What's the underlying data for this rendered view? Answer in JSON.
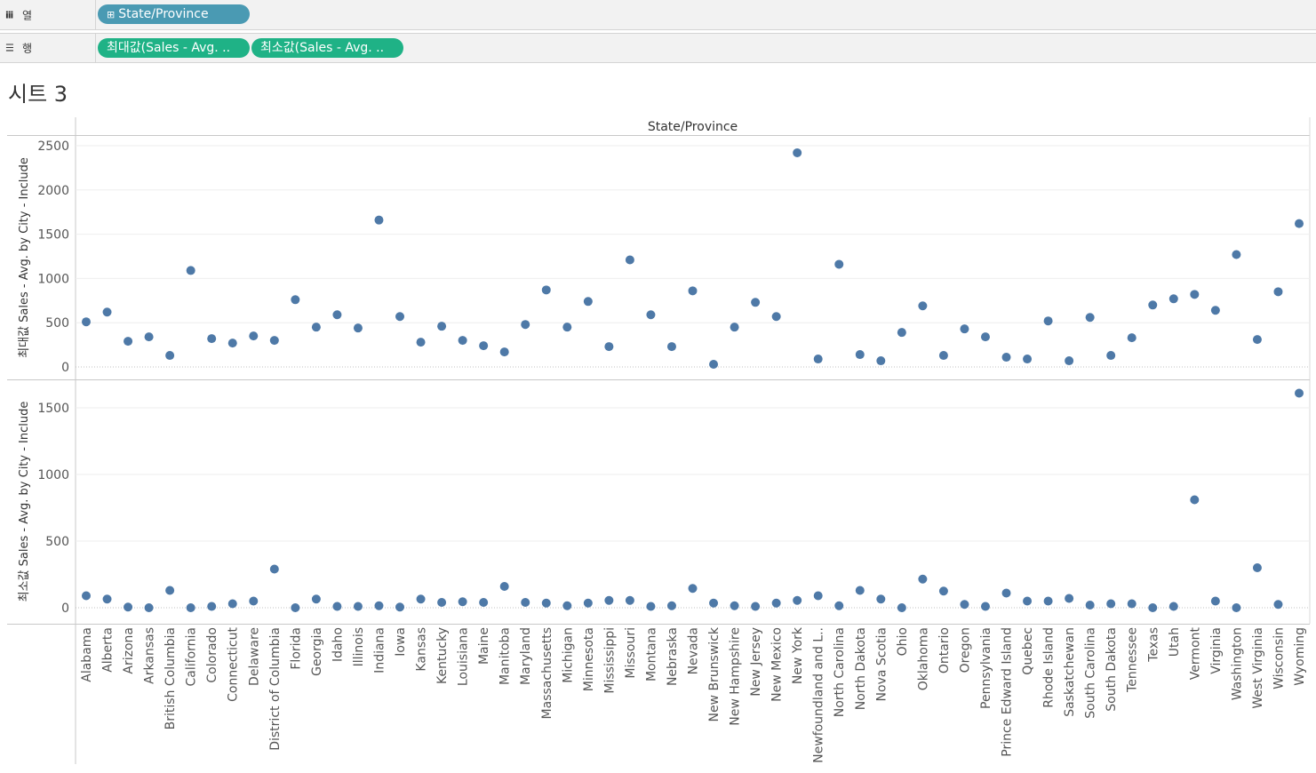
{
  "shelves": {
    "columns": {
      "icon": "iii",
      "label": "열",
      "pills": [
        "State/Province"
      ]
    },
    "rows": {
      "icon": "☰",
      "label": "행",
      "pills": [
        "최대값(Sales - Avg. ..",
        "최소값(Sales - Avg. .."
      ]
    }
  },
  "sheet_title": "시트 3",
  "colors": {
    "mark": "#4e79a7",
    "pill_dim": "#4a9ab3",
    "pill_measure": "#1fb286"
  },
  "chart_data": {
    "type": "scatter",
    "header": "State/Province",
    "categories": [
      "Alabama",
      "Alberta",
      "Arizona",
      "Arkansas",
      "British Columbia",
      "California",
      "Colorado",
      "Connecticut",
      "Delaware",
      "District of Columbia",
      "Florida",
      "Georgia",
      "Idaho",
      "Illinois",
      "Indiana",
      "Iowa",
      "Kansas",
      "Kentucky",
      "Louisiana",
      "Maine",
      "Manitoba",
      "Maryland",
      "Massachusetts",
      "Michigan",
      "Minnesota",
      "Mississippi",
      "Missouri",
      "Montana",
      "Nebraska",
      "Nevada",
      "New Brunswick",
      "New Hampshire",
      "New Jersey",
      "New Mexico",
      "New York",
      "Newfoundland and L..",
      "North Carolina",
      "North Dakota",
      "Nova Scotia",
      "Ohio",
      "Oklahoma",
      "Ontario",
      "Oregon",
      "Pennsylvania",
      "Prince Edward Island",
      "Quebec",
      "Rhode Island",
      "Saskatchewan",
      "South Carolina",
      "South Dakota",
      "Tennessee",
      "Texas",
      "Utah",
      "Vermont",
      "Virginia",
      "Washington",
      "West Virginia",
      "Wisconsin",
      "Wyoming"
    ],
    "panes": [
      {
        "name": "최대값 Sales - Avg. by City - Include",
        "ylabel": "최대값 Sales - Avg. by City - Include",
        "ylim": [
          0,
          2600
        ],
        "yticks": [
          0,
          500,
          1000,
          1500,
          2000,
          2500
        ],
        "values": [
          510,
          620,
          290,
          340,
          130,
          1090,
          320,
          270,
          350,
          300,
          760,
          450,
          590,
          440,
          1660,
          570,
          280,
          460,
          300,
          240,
          170,
          480,
          870,
          450,
          740,
          230,
          1210,
          590,
          230,
          860,
          30,
          450,
          730,
          570,
          2420,
          90,
          1160,
          140,
          70,
          390,
          690,
          130,
          430,
          340,
          110,
          90,
          520,
          70,
          560,
          130,
          330,
          700,
          770,
          820,
          640,
          1270,
          310,
          850,
          1620
        ]
      },
      {
        "name": "최소값 Sales - Avg. by City - Include",
        "ylabel": "최소값 Sales - Avg. by City - Include",
        "ylim": [
          0,
          1720
        ],
        "yticks": [
          0,
          500,
          1000,
          1500
        ],
        "values": [
          90,
          65,
          5,
          0,
          130,
          0,
          10,
          30,
          50,
          290,
          0,
          65,
          10,
          10,
          15,
          5,
          65,
          40,
          45,
          40,
          160,
          40,
          35,
          15,
          35,
          55,
          55,
          10,
          15,
          145,
          35,
          15,
          10,
          35,
          55,
          90,
          15,
          130,
          65,
          0,
          215,
          125,
          25,
          10,
          110,
          50,
          50,
          70,
          20,
          30,
          30,
          0,
          10,
          810,
          50,
          0,
          300,
          25,
          1610
        ]
      }
    ],
    "grid": true
  }
}
